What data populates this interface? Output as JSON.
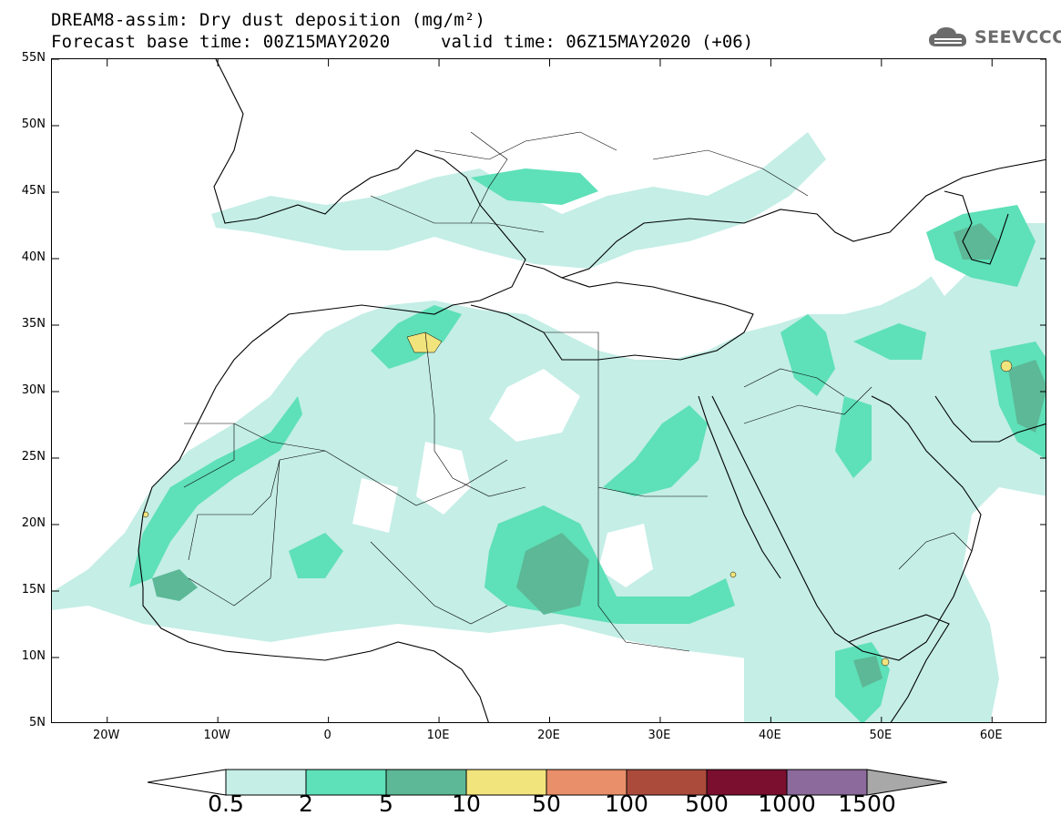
{
  "title": {
    "line1": "DREAM8-assim: Dry dust deposition (mg/m²)",
    "line2": "Forecast base time: 00Z15MAY2020",
    "valid": "valid time: 06Z15MAY2020 (+06)"
  },
  "logo": {
    "text": "SEEVCCC",
    "icon": "cloud-icon"
  },
  "map": {
    "type": "contour-map",
    "lon_range": [
      -25,
      65
    ],
    "lat_range": [
      5,
      55
    ],
    "lat_ticks": [
      {
        "value": 55,
        "label": "55N"
      },
      {
        "value": 50,
        "label": "50N"
      },
      {
        "value": 45,
        "label": "45N"
      },
      {
        "value": 40,
        "label": "40N"
      },
      {
        "value": 35,
        "label": "35N"
      },
      {
        "value": 30,
        "label": "30N"
      },
      {
        "value": 25,
        "label": "25N"
      },
      {
        "value": 20,
        "label": "20N"
      },
      {
        "value": 15,
        "label": "15N"
      },
      {
        "value": 10,
        "label": "10N"
      },
      {
        "value": 5,
        "label": "5N"
      }
    ],
    "lon_ticks": [
      {
        "value": -20,
        "label": "20W"
      },
      {
        "value": -10,
        "label": "10W"
      },
      {
        "value": 0,
        "label": "0"
      },
      {
        "value": 10,
        "label": "10E"
      },
      {
        "value": 20,
        "label": "20E"
      },
      {
        "value": 30,
        "label": "30E"
      },
      {
        "value": 40,
        "label": "40E"
      },
      {
        "value": 50,
        "label": "50E"
      },
      {
        "value": 60,
        "label": "60E"
      }
    ]
  },
  "colorbar": {
    "levels": [
      "0.5",
      "2",
      "5",
      "10",
      "50",
      "100",
      "500",
      "1000",
      "1500"
    ],
    "colors": [
      "#ffffff",
      "#c4eee6",
      "#5ee0b8",
      "#5cb896",
      "#f2e47c",
      "#e98f6a",
      "#ab4b3c",
      "#7a0f2f",
      "#8c6a9c",
      "#a8a8a8"
    ]
  }
}
